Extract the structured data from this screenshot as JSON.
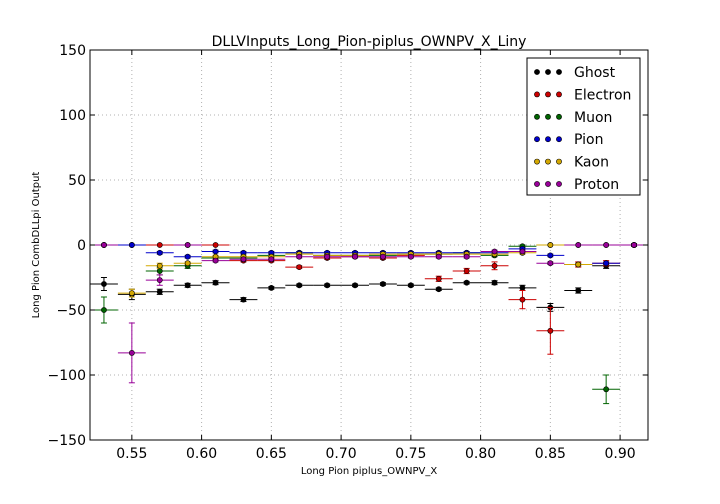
{
  "chart_data": {
    "type": "scatter",
    "title": "DLLVInputs_Long_Pion-piplus_OWNPV_X_Liny",
    "xlabel": "Long Pion piplus_OWNPV_X",
    "ylabel": "Long Pion CombDLLpi Output",
    "xlim": [
      0.52,
      0.92
    ],
    "ylim": [
      -150,
      150
    ],
    "xticks": [
      "0.55",
      "0.60",
      "0.65",
      "0.70",
      "0.75",
      "0.80",
      "0.85",
      "0.90"
    ],
    "yticks": [
      "150",
      "100",
      "50",
      "0",
      "−50",
      "−100",
      "−150"
    ],
    "grid": true,
    "legend_position": "top-right",
    "x_bin_halfwidth": 0.01,
    "series": [
      {
        "name": "Ghost",
        "color": "#000000",
        "points": [
          [
            0.53,
            -30,
            5
          ],
          [
            0.55,
            -38,
            4
          ],
          [
            0.57,
            -36,
            2
          ],
          [
            0.59,
            -31,
            1.5
          ],
          [
            0.61,
            -29,
            1.5
          ],
          [
            0.63,
            -42,
            1.5
          ],
          [
            0.65,
            -33,
            1
          ],
          [
            0.67,
            -31,
            1
          ],
          [
            0.69,
            -31,
            1
          ],
          [
            0.71,
            -31,
            1
          ],
          [
            0.73,
            -30,
            1
          ],
          [
            0.75,
            -31,
            1
          ],
          [
            0.77,
            -34,
            1
          ],
          [
            0.79,
            -29,
            1
          ],
          [
            0.81,
            -29,
            1.5
          ],
          [
            0.83,
            -33,
            2
          ],
          [
            0.85,
            -48,
            3
          ],
          [
            0.87,
            -35,
            2
          ],
          [
            0.89,
            -16,
            2
          ],
          [
            0.91,
            0,
            1
          ]
        ]
      },
      {
        "name": "Electron",
        "color": "#cc0000",
        "points": [
          [
            0.53,
            0,
            0
          ],
          [
            0.55,
            0,
            0
          ],
          [
            0.57,
            0,
            0
          ],
          [
            0.59,
            0,
            0
          ],
          [
            0.61,
            0,
            0
          ],
          [
            0.63,
            -12,
            1
          ],
          [
            0.65,
            -12,
            1
          ],
          [
            0.67,
            -17,
            1
          ],
          [
            0.69,
            -10,
            1
          ],
          [
            0.71,
            -9,
            1
          ],
          [
            0.73,
            -10,
            1
          ],
          [
            0.75,
            -8,
            1
          ],
          [
            0.77,
            -26,
            2
          ],
          [
            0.79,
            -20,
            2
          ],
          [
            0.81,
            -16,
            3
          ],
          [
            0.83,
            -42,
            7
          ],
          [
            0.85,
            -66,
            18
          ],
          [
            0.87,
            -15,
            2
          ],
          [
            0.89,
            -14,
            2
          ],
          [
            0.91,
            0,
            0
          ]
        ]
      },
      {
        "name": "Muon",
        "color": "#006400",
        "points": [
          [
            0.53,
            -50,
            10
          ],
          [
            0.55,
            0,
            0
          ],
          [
            0.57,
            -20,
            3
          ],
          [
            0.59,
            -16,
            2
          ],
          [
            0.61,
            -10,
            1
          ],
          [
            0.63,
            -10,
            1
          ],
          [
            0.65,
            -8,
            1
          ],
          [
            0.67,
            -6,
            1
          ],
          [
            0.69,
            -8,
            1
          ],
          [
            0.71,
            -8,
            1
          ],
          [
            0.73,
            -8,
            1
          ],
          [
            0.75,
            -7,
            1
          ],
          [
            0.77,
            -7,
            1
          ],
          [
            0.79,
            -6,
            1
          ],
          [
            0.81,
            -8,
            1
          ],
          [
            0.83,
            -1,
            1
          ],
          [
            0.85,
            0,
            0
          ],
          [
            0.87,
            0,
            0
          ],
          [
            0.89,
            -111,
            11
          ],
          [
            0.91,
            0,
            0
          ]
        ]
      },
      {
        "name": "Pion",
        "color": "#0000cc",
        "points": [
          [
            0.53,
            0,
            0
          ],
          [
            0.55,
            0,
            0
          ],
          [
            0.57,
            -6,
            1
          ],
          [
            0.59,
            -9,
            1
          ],
          [
            0.61,
            -5,
            1
          ],
          [
            0.63,
            -6,
            1
          ],
          [
            0.65,
            -6,
            1
          ],
          [
            0.67,
            -6,
            1
          ],
          [
            0.69,
            -6,
            1
          ],
          [
            0.71,
            -6,
            1
          ],
          [
            0.73,
            -6,
            1
          ],
          [
            0.75,
            -6,
            1
          ],
          [
            0.77,
            -6,
            1
          ],
          [
            0.79,
            -6,
            1
          ],
          [
            0.81,
            -6,
            1
          ],
          [
            0.83,
            -3,
            1
          ],
          [
            0.85,
            -8,
            1
          ],
          [
            0.87,
            -15,
            1
          ],
          [
            0.89,
            -14,
            1
          ],
          [
            0.91,
            0,
            0
          ]
        ]
      },
      {
        "name": "Kaon",
        "color": "#d4a800",
        "points": [
          [
            0.53,
            0,
            0
          ],
          [
            0.55,
            -37,
            3
          ],
          [
            0.57,
            -16,
            2
          ],
          [
            0.59,
            -14,
            1
          ],
          [
            0.61,
            -9,
            1
          ],
          [
            0.63,
            -9,
            1
          ],
          [
            0.65,
            -9,
            1
          ],
          [
            0.67,
            -7,
            1
          ],
          [
            0.69,
            -8,
            1
          ],
          [
            0.71,
            -8,
            1
          ],
          [
            0.73,
            -7,
            1
          ],
          [
            0.75,
            -7,
            1
          ],
          [
            0.77,
            -7,
            1
          ],
          [
            0.79,
            -7,
            1
          ],
          [
            0.81,
            -7,
            1
          ],
          [
            0.83,
            -6,
            1
          ],
          [
            0.85,
            0,
            0
          ],
          [
            0.87,
            -15,
            1
          ],
          [
            0.89,
            0,
            0
          ],
          [
            0.91,
            0,
            0
          ]
        ]
      },
      {
        "name": "Proton",
        "color": "#990099",
        "points": [
          [
            0.53,
            0,
            0
          ],
          [
            0.55,
            -83,
            23
          ],
          [
            0.57,
            -27,
            4
          ],
          [
            0.59,
            0,
            0
          ],
          [
            0.61,
            -12,
            1
          ],
          [
            0.63,
            -11,
            1
          ],
          [
            0.65,
            -11,
            1
          ],
          [
            0.67,
            -9,
            1
          ],
          [
            0.69,
            -9,
            1
          ],
          [
            0.71,
            -9,
            1
          ],
          [
            0.73,
            -9,
            1
          ],
          [
            0.75,
            -9,
            1
          ],
          [
            0.77,
            -9,
            1
          ],
          [
            0.79,
            -9,
            1
          ],
          [
            0.81,
            -5,
            1
          ],
          [
            0.83,
            -5,
            1
          ],
          [
            0.85,
            -14,
            1
          ],
          [
            0.87,
            0,
            0
          ],
          [
            0.89,
            0,
            0
          ],
          [
            0.91,
            0,
            0
          ]
        ]
      }
    ]
  }
}
